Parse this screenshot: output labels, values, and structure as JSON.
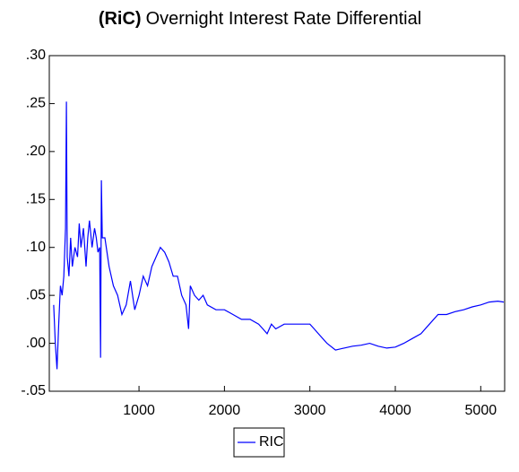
{
  "chart_data": {
    "type": "line",
    "title": [
      "(RiC)",
      "Overnight Interest Rate Differential"
    ],
    "x": [
      1,
      20,
      40,
      60,
      80,
      100,
      120,
      140,
      150,
      160,
      180,
      200,
      220,
      250,
      280,
      300,
      320,
      350,
      380,
      400,
      420,
      450,
      480,
      500,
      520,
      540,
      550,
      560,
      570,
      600,
      650,
      700,
      750,
      800,
      850,
      900,
      950,
      1000,
      1050,
      1100,
      1150,
      1200,
      1250,
      1300,
      1350,
      1400,
      1450,
      1500,
      1550,
      1580,
      1600,
      1650,
      1700,
      1750,
      1800,
      1900,
      2000,
      2100,
      2200,
      2300,
      2400,
      2450,
      2500,
      2550,
      2600,
      2700,
      2800,
      2900,
      3000,
      3050,
      3100,
      3200,
      3300,
      3400,
      3500,
      3600,
      3700,
      3800,
      3900,
      4000,
      4100,
      4200,
      4300,
      4400,
      4500,
      4600,
      4700,
      4800,
      4900,
      5000,
      5100,
      5200,
      5270
    ],
    "series": [
      {
        "name": "RIC",
        "color": "#0000ff",
        "values": [
          0.04,
          0.0,
          -0.027,
          0.02,
          0.06,
          0.05,
          0.07,
          0.12,
          0.252,
          0.09,
          0.07,
          0.11,
          0.08,
          0.1,
          0.09,
          0.125,
          0.1,
          0.12,
          0.08,
          0.11,
          0.128,
          0.1,
          0.12,
          0.11,
          0.095,
          0.1,
          -0.015,
          0.17,
          0.11,
          0.11,
          0.08,
          0.06,
          0.05,
          0.03,
          0.04,
          0.065,
          0.035,
          0.05,
          0.07,
          0.06,
          0.08,
          0.09,
          0.1,
          0.095,
          0.085,
          0.07,
          0.07,
          0.05,
          0.04,
          0.015,
          0.06,
          0.05,
          0.045,
          0.05,
          0.04,
          0.035,
          0.035,
          0.03,
          0.025,
          0.025,
          0.02,
          0.015,
          0.01,
          0.02,
          0.015,
          0.02,
          0.02,
          0.02,
          0.02,
          0.015,
          0.01,
          0.0,
          -0.007,
          -0.005,
          -0.003,
          -0.002,
          0.0,
          -0.003,
          -0.005,
          -0.004,
          0.0,
          0.005,
          0.01,
          0.02,
          0.03,
          0.03,
          0.033,
          0.035,
          0.038,
          0.04,
          0.043,
          0.044,
          0.043
        ]
      }
    ],
    "xlim": [
      -50,
      5280
    ],
    "xticks": [
      1000,
      2000,
      3000,
      4000,
      5000
    ],
    "ylim": [
      -0.05,
      0.3
    ],
    "yticks": [
      {
        "value": -0.05,
        "label": "-.05"
      },
      {
        "value": 0.0,
        "label": ".00"
      },
      {
        "value": 0.05,
        "label": ".05"
      },
      {
        "value": 0.1,
        "label": ".10"
      },
      {
        "value": 0.15,
        "label": ".15"
      },
      {
        "value": 0.2,
        "label": ".20"
      },
      {
        "value": 0.25,
        "label": ".25"
      },
      {
        "value": 0.3,
        "label": ".30"
      }
    ],
    "legend": "bottom"
  }
}
